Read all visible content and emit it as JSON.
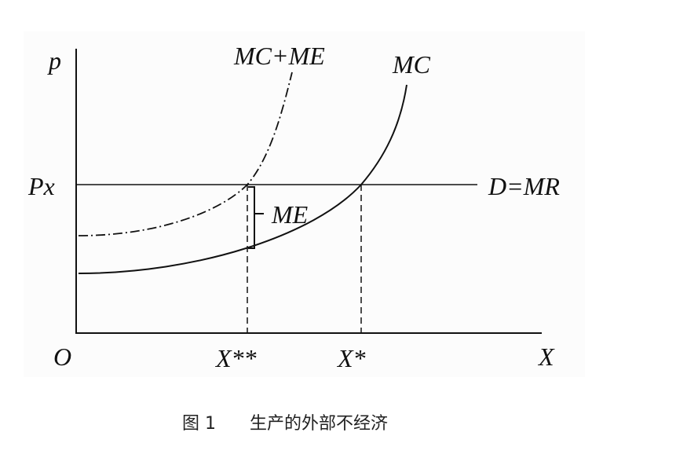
{
  "diagram": {
    "axis_labels": {
      "y": "p",
      "x": "X",
      "origin": "O"
    },
    "price_label": "Px",
    "demand_label": "D=MR",
    "curves": {
      "mc": "MC",
      "mc_me": "MC+ME"
    },
    "gap_label": "ME",
    "quantity_labels": {
      "social": "X**",
      "private": "X*"
    },
    "caption": {
      "number": "图 1",
      "text": "生产的外部不经济"
    }
  }
}
